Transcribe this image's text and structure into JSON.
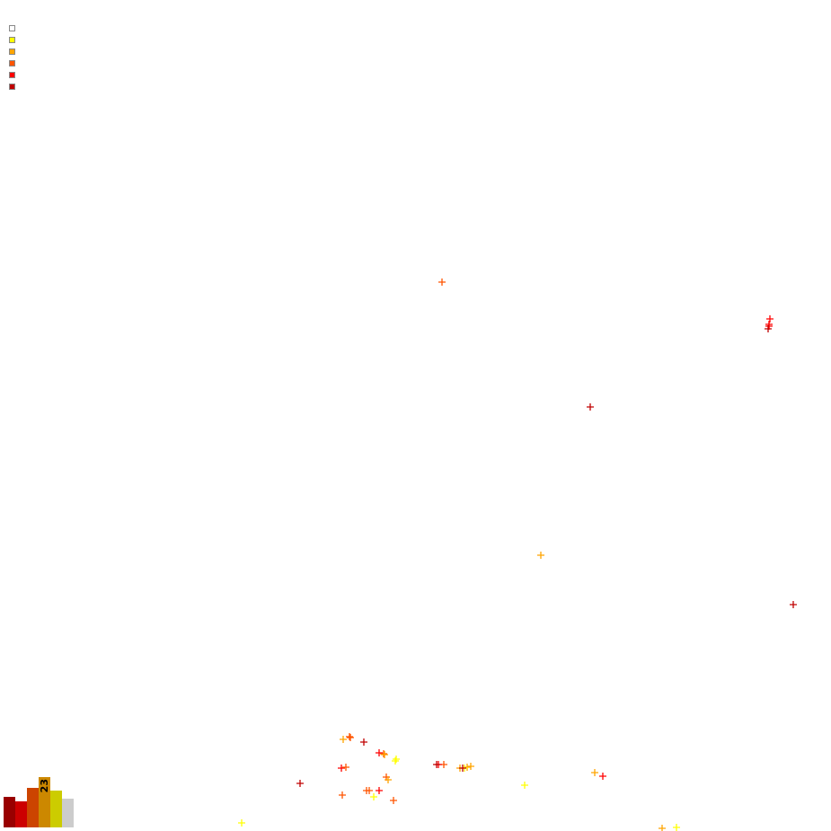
{
  "chart_data": [
    {
      "type": "scatter",
      "marker": "plus",
      "legend": {
        "placement": "top-left",
        "swatches": [
          "#ffffff",
          "#ffff00",
          "#ffa500",
          "#ff5500",
          "#ff0000",
          "#c00000"
        ]
      }
    },
    {
      "type": "bar",
      "colors": [
        "#990000",
        "#cc0000",
        "#cc4400",
        "#cc8800",
        "#cccc00",
        "#cccccc"
      ],
      "values": [
        14,
        12,
        18,
        23,
        17,
        13
      ],
      "labels": [
        "",
        "",
        "",
        "23",
        "",
        ""
      ]
    }
  ]
}
